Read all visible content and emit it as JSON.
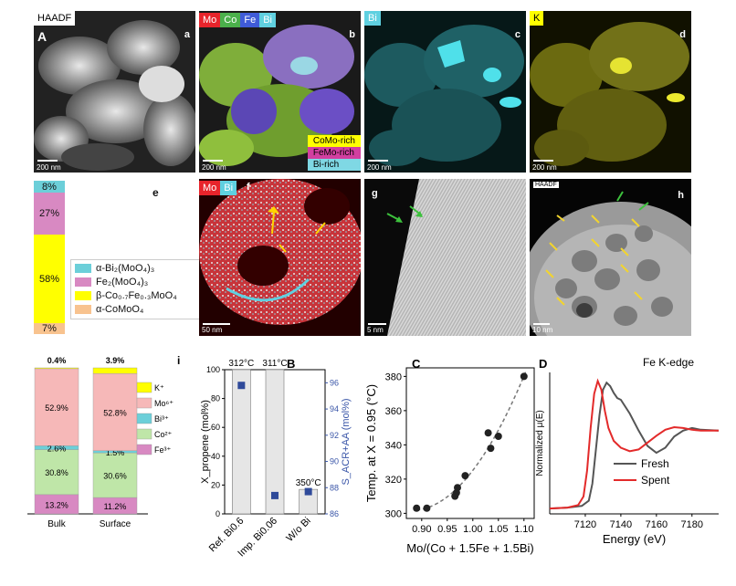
{
  "top": {
    "a": {
      "tag_big": "A",
      "tag": "a",
      "label": "HAADF",
      "scale": "200 nm"
    },
    "b": {
      "tag": "b",
      "elements": [
        "Mo",
        "Co",
        "Fe",
        "Bi"
      ],
      "colors": [
        "#e8242b",
        "#4bb04b",
        "#3f5bd8",
        "#5fd0e0"
      ],
      "legend": [
        "CoMo-rich",
        "FeMo-rich",
        "Bi-rich"
      ],
      "legend_colors": [
        "#ffff00",
        "#d23fa0",
        "#7fd8e4"
      ],
      "scale": "200 nm"
    },
    "c": {
      "tag": "c",
      "element": "Bi",
      "scale": "200 nm"
    },
    "d": {
      "tag": "d",
      "element": "K",
      "scale": "200 nm"
    }
  },
  "panel_e": {
    "tag": "e",
    "segments": [
      {
        "label": "8%",
        "value": 8,
        "color": "#6ccfd9"
      },
      {
        "label": "27%",
        "value": 27,
        "color": "#d889c2"
      },
      {
        "label": "58%",
        "value": 58,
        "color": "#ffff00"
      },
      {
        "label": "7%",
        "value": 7,
        "color": "#f8c38f"
      }
    ],
    "legend": [
      "α-Bi₂(MoO₄)₃",
      "Fe₂(MoO₄)₃",
      "β-Co₀.₇Fe₀.₃MoO₄",
      "α-CoMoO₄"
    ]
  },
  "f": {
    "tag": "f",
    "elements": [
      "Mo",
      "Bi"
    ],
    "scale": "50 nm"
  },
  "g": {
    "tag": "g",
    "scale": "5 nm"
  },
  "h": {
    "tag": "h",
    "label": "HAADF",
    "scale": "10 nm"
  },
  "chart_data": [
    {
      "type": "bar",
      "panel": "i",
      "categories": [
        "Bulk",
        "Surface"
      ],
      "top_labels": [
        "0.4%",
        "3.9%"
      ],
      "legend": [
        "K⁺",
        "Mo⁶⁺",
        "Bi³⁺",
        "Co²⁺",
        "Fe³⁺"
      ],
      "colors": [
        "#ffff00",
        "#f6b8b8",
        "#6ccfd9",
        "#bfe6a8",
        "#d889c2"
      ],
      "series": [
        {
          "name": "Fe³⁺",
          "values": [
            13.2,
            11.2
          ],
          "labels": [
            "13.2%",
            "11.2%"
          ]
        },
        {
          "name": "Co²⁺",
          "values": [
            30.8,
            30.6
          ],
          "labels": [
            "30.8%",
            "30.6%"
          ]
        },
        {
          "name": "Bi³⁺",
          "values": [
            2.6,
            1.5
          ],
          "labels": [
            "2.6%",
            "1.5%"
          ]
        },
        {
          "name": "Mo⁶⁺",
          "values": [
            52.9,
            52.8
          ],
          "labels": [
            "52.9%",
            "52.8%"
          ]
        },
        {
          "name": "K⁺",
          "values": [
            0.4,
            3.9
          ]
        }
      ]
    },
    {
      "type": "bar",
      "panel": "B",
      "categories": [
        "Ref. Bi0.6",
        "Imp. Bi0.06",
        "W/o Bi"
      ],
      "values": [
        100,
        100,
        17
      ],
      "bar_labels": [
        "312°C",
        "311°C",
        "350°C"
      ],
      "ylabel": "X_propene (mol%)",
      "ylim": [
        0,
        100
      ],
      "yticks": [
        0,
        20,
        40,
        60,
        80,
        100
      ],
      "ylabel2": "S_ACR+AA (mol%)",
      "ylim2": [
        86,
        97
      ],
      "yticks2": [
        86,
        88,
        90,
        92,
        94,
        96
      ],
      "selectivity": [
        95.8,
        87.4,
        87.7
      ]
    },
    {
      "type": "scatter",
      "panel": "C",
      "x": [
        0.89,
        0.91,
        0.965,
        0.968,
        0.97,
        0.985,
        1.03,
        1.035,
        1.05,
        1.1
      ],
      "y": [
        303,
        303,
        310,
        312,
        315,
        322,
        347,
        338,
        345,
        380
      ],
      "fit": "quadratic (dashed)",
      "xlabel": "Mo/(Co + 1.5Fe + 1.5Bi)",
      "ylabel": "Temp. at X = 0.95 (°C)",
      "xlim": [
        0.87,
        1.12
      ],
      "ylim": [
        297,
        385
      ],
      "xticks": [
        0.9,
        0.95,
        1.0,
        1.05,
        1.1
      ],
      "xtick_labels": [
        "0.90",
        "0.95",
        "1.00",
        "1.05",
        "1.10"
      ],
      "yticks": [
        300,
        320,
        340,
        360,
        380
      ]
    },
    {
      "type": "line",
      "panel": "D",
      "title": "Fe K-edge",
      "xlabel": "Energy (eV)",
      "ylabel": "Normalized μ(E)",
      "xlim": [
        7100,
        7195
      ],
      "xticks": [
        7120,
        7140,
        7160,
        7180
      ],
      "series": [
        {
          "name": "Fresh",
          "color": "#555555",
          "x": [
            7100,
            7110,
            7118,
            7122,
            7124,
            7126,
            7128,
            7130,
            7132,
            7134,
            7136,
            7138,
            7140,
            7145,
            7150,
            7155,
            7160,
            7165,
            7170,
            7175,
            7180,
            7185,
            7195
          ],
          "y": [
            0.01,
            0.02,
            0.04,
            0.1,
            0.3,
            0.7,
            1.1,
            1.4,
            1.48,
            1.44,
            1.36,
            1.3,
            1.28,
            1.12,
            0.92,
            0.74,
            0.66,
            0.72,
            0.85,
            0.92,
            0.95,
            0.93,
            0.92
          ]
        },
        {
          "name": "Spent",
          "color": "#e32a2a",
          "x": [
            7100,
            7110,
            7116,
            7119,
            7121,
            7123,
            7125,
            7127,
            7129,
            7131,
            7133,
            7136,
            7140,
            7145,
            7150,
            7155,
            7160,
            7165,
            7170,
            7175,
            7180,
            7185,
            7195
          ],
          "y": [
            0.01,
            0.02,
            0.05,
            0.15,
            0.45,
            0.95,
            1.35,
            1.5,
            1.4,
            1.15,
            0.95,
            0.8,
            0.72,
            0.68,
            0.7,
            0.78,
            0.86,
            0.93,
            0.96,
            0.95,
            0.93,
            0.92,
            0.92
          ]
        }
      ]
    }
  ],
  "panel_labels": {
    "B": "B",
    "C": "C",
    "D": "D",
    "i": "i"
  }
}
